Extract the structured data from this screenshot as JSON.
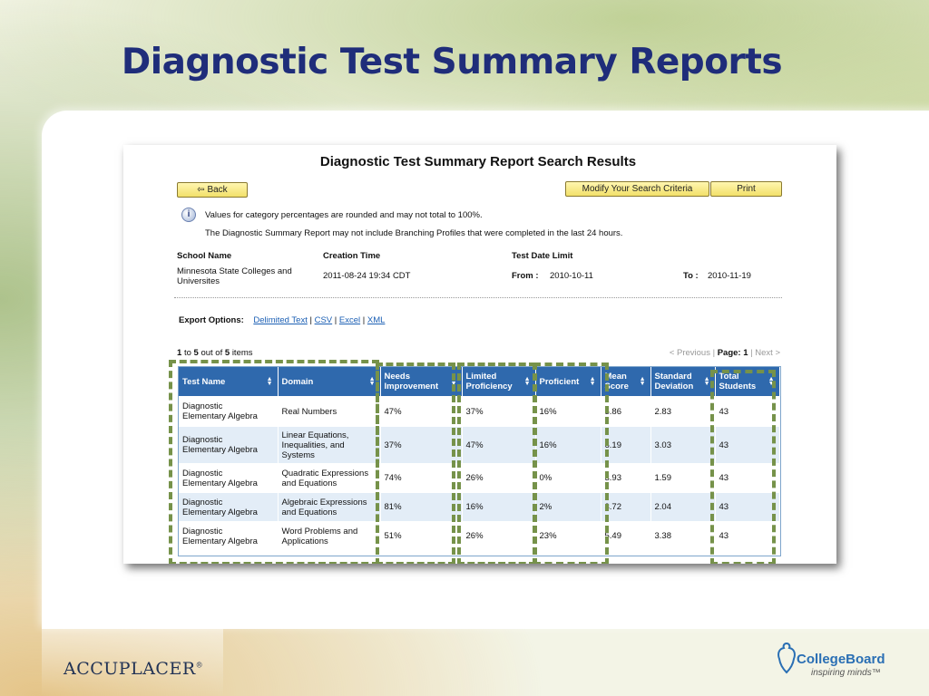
{
  "slide": {
    "title": "Diagnostic Test Summary Reports"
  },
  "report": {
    "title": "Diagnostic Test Summary Report Search Results",
    "back_label": "⇦ Back",
    "modify_label": "Modify Your Search Criteria",
    "print_label": "Print",
    "info_icon": "i",
    "note1": "Values for category percentages are rounded and may not total to 100%.",
    "note2": "The Diagnostic Summary Report may not include Branching Profiles that were completed in the last 24 hours.",
    "school_name_label": "School Name",
    "school_name_line1": "Minnesota State Colleges and",
    "school_name_line2": "Universites",
    "creation_time_label": "Creation Time",
    "creation_time": "2011-08-24 19:34 CDT",
    "test_date_limit_label": "Test Date Limit",
    "from_label": "From :",
    "from_value": "2010-10-11",
    "to_label": "To :",
    "to_value": "2010-11-19",
    "export_label": "Export Options:",
    "export_links": [
      "Delimited Text",
      "CSV",
      "Excel",
      "XML"
    ],
    "items_from": "1",
    "items_to": "5",
    "items_total": "5",
    "items_text_to": "to",
    "items_text_outof": "out of",
    "items_text_items": "items",
    "pager_prev": "< Previous",
    "pager_page": "Page: 1",
    "pager_next": "Next >",
    "columns": [
      [
        "Test Name"
      ],
      [
        "Domain"
      ],
      [
        "Needs",
        "Improvement"
      ],
      [
        "Limited",
        "Proficiency"
      ],
      [
        "Proficient"
      ],
      [
        "Mean",
        "Score"
      ],
      [
        "Standard",
        "Deviation"
      ],
      [
        "Total",
        "Students"
      ]
    ],
    "rows": [
      [
        [
          "Diagnostic",
          "Elementary Algebra"
        ],
        [
          "Real Numbers"
        ],
        [
          "47%"
        ],
        [
          "37%"
        ],
        [
          "16%"
        ],
        [
          "5.86"
        ],
        [
          "2.83"
        ],
        [
          "43"
        ]
      ],
      [
        [
          "Diagnostic",
          "Elementary Algebra"
        ],
        [
          "Linear Equations,",
          "Inequalities, and",
          "Systems"
        ],
        [
          "37%"
        ],
        [
          "47%"
        ],
        [
          "16%"
        ],
        [
          "6.19"
        ],
        [
          "3.03"
        ],
        [
          "43"
        ]
      ],
      [
        [
          "Diagnostic",
          "Elementary Algebra"
        ],
        [
          "Quadratic Expressions",
          "and Equations"
        ],
        [
          "74%"
        ],
        [
          "26%"
        ],
        [
          "0%"
        ],
        [
          "3.93"
        ],
        [
          "1.59"
        ],
        [
          "43"
        ]
      ],
      [
        [
          "Diagnostic",
          "Elementary Algebra"
        ],
        [
          "Algebraic Expressions",
          "and Equations"
        ],
        [
          "81%"
        ],
        [
          "16%"
        ],
        [
          "2%"
        ],
        [
          "3.72"
        ],
        [
          "2.04"
        ],
        [
          "43"
        ]
      ],
      [
        [
          "Diagnostic",
          "Elementary Algebra"
        ],
        [
          "Word Problems and",
          "Applications"
        ],
        [
          "51%"
        ],
        [
          "26%"
        ],
        [
          "23%"
        ],
        [
          "5.49"
        ],
        [
          "3.38"
        ],
        [
          "43"
        ]
      ]
    ]
  },
  "footer": {
    "accuplacer": "ACCUPLACER",
    "accuplacer_mark": "®",
    "collegeboard": "CollegeBoard",
    "tagline": "inspiring minds™"
  },
  "colors": {
    "title_navy": "#1f2d7a",
    "table_header_blue": "#2f69ad",
    "highlight_green": "#76924a",
    "button_yellow": "#f2e06a"
  }
}
